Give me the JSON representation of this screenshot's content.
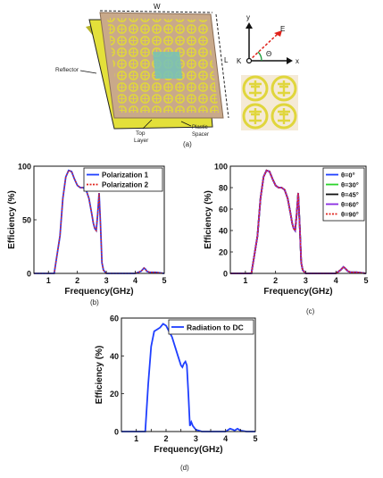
{
  "figure_a": {
    "caption": "(a)",
    "labels": {
      "width": "W",
      "length": "L",
      "reflector": "Reflector",
      "top_layer_1": "Top",
      "top_layer_2": "Layer",
      "plastic_spacer_1": "Plastic",
      "plastic_spacer_2": "Spacer",
      "axis_e": "E",
      "axis_k": "K",
      "axis_x": "x",
      "axis_y": "y",
      "angle": "Θ"
    },
    "colors": {
      "reflector": "#e3e03a",
      "reflector_side": "#b8b42a",
      "substrate": "#c9a98a",
      "cell": "#e0d63c",
      "center_cell": "#74c2b8",
      "e_vector": "#e0231c",
      "arc": "#1a9a3a"
    }
  },
  "chart_data": [
    {
      "id": "b",
      "type": "line",
      "caption": "(b)",
      "xlabel": "Frequency(GHz)",
      "ylabel": "Efficiency (%)",
      "xlim": [
        0.5,
        5
      ],
      "ylim": [
        0,
        100
      ],
      "xticks": [
        1,
        2,
        3,
        4,
        5
      ],
      "yticks": [
        0,
        50,
        100
      ],
      "grid": false,
      "legend_position": "top-right",
      "x": [
        0.5,
        0.9,
        1.2,
        1.4,
        1.5,
        1.6,
        1.7,
        1.8,
        1.9,
        2.0,
        2.1,
        2.2,
        2.3,
        2.4,
        2.5,
        2.55,
        2.6,
        2.65,
        2.7,
        2.75,
        2.8,
        2.85,
        2.9,
        3.0,
        3.2,
        3.5,
        4.0,
        4.2,
        4.3,
        4.35,
        4.4,
        4.5,
        4.7,
        5.0
      ],
      "series": [
        {
          "name": "Polarization 1",
          "color": "#1f3fff",
          "dash": "solid",
          "values": [
            0,
            0,
            0,
            35,
            70,
            90,
            96,
            95,
            88,
            82,
            80,
            80,
            78,
            70,
            55,
            47,
            42,
            40,
            55,
            75,
            45,
            10,
            3,
            0,
            0,
            0,
            0,
            2,
            5,
            4,
            2,
            1,
            1,
            0
          ]
        },
        {
          "name": "Polarization 2",
          "color": "#e0231c",
          "dash": "dashed",
          "values": [
            0,
            0,
            0,
            35,
            70,
            90,
            96,
            95,
            88,
            82,
            80,
            80,
            78,
            70,
            55,
            47,
            42,
            40,
            55,
            75,
            45,
            10,
            3,
            0,
            0,
            0,
            0,
            2,
            5,
            4,
            2,
            1,
            1,
            0
          ]
        }
      ]
    },
    {
      "id": "c",
      "type": "line",
      "caption": "(c)",
      "xlabel": "Frequency(GHz)",
      "ylabel": "Efficiency (%)",
      "xlim": [
        0.5,
        5
      ],
      "ylim": [
        0,
        100
      ],
      "xticks": [
        1,
        2,
        3,
        4,
        5
      ],
      "yticks": [
        0,
        20,
        40,
        60,
        80,
        100
      ],
      "grid": false,
      "legend_position": "top-right",
      "x": [
        0.5,
        0.9,
        1.2,
        1.4,
        1.5,
        1.6,
        1.7,
        1.8,
        1.9,
        2.0,
        2.1,
        2.2,
        2.3,
        2.4,
        2.5,
        2.55,
        2.6,
        2.65,
        2.7,
        2.75,
        2.8,
        2.85,
        2.9,
        3.0,
        3.2,
        3.5,
        4.0,
        4.15,
        4.25,
        4.3,
        4.4,
        4.5,
        4.7,
        5.0
      ],
      "series": [
        {
          "name": "θ=0°",
          "color": "#1f3fff",
          "dash": "solid",
          "values": [
            0,
            0,
            0,
            35,
            70,
            90,
            96,
            95,
            88,
            82,
            80,
            80,
            78,
            70,
            55,
            47,
            42,
            40,
            55,
            75,
            45,
            10,
            3,
            0,
            0,
            0,
            0,
            3,
            6,
            5,
            2,
            1,
            1,
            0
          ]
        },
        {
          "name": "θ=30°",
          "color": "#2bd42b",
          "dash": "solid",
          "values": [
            0,
            0,
            0,
            35,
            70,
            90,
            96,
            95,
            88,
            82,
            80,
            80,
            78,
            70,
            55,
            47,
            42,
            40,
            55,
            75,
            45,
            10,
            3,
            0,
            0,
            0,
            0,
            3,
            6,
            5,
            2,
            1,
            1,
            0
          ]
        },
        {
          "name": "θ=45°",
          "color": "#111111",
          "dash": "solid",
          "values": [
            0,
            0,
            0,
            35,
            70,
            90,
            96,
            95,
            88,
            82,
            80,
            80,
            78,
            70,
            55,
            47,
            42,
            40,
            55,
            75,
            45,
            10,
            3,
            0,
            0,
            0,
            0,
            3,
            6,
            5,
            2,
            1,
            1,
            0
          ]
        },
        {
          "name": "θ=60°",
          "color": "#8a2be2",
          "dash": "solid",
          "values": [
            0,
            0,
            0,
            35,
            70,
            90,
            96,
            95,
            88,
            82,
            80,
            80,
            78,
            70,
            55,
            47,
            42,
            40,
            55,
            75,
            45,
            10,
            3,
            0,
            0,
            0,
            0,
            3,
            6,
            5,
            2,
            1,
            1,
            0
          ]
        },
        {
          "name": "θ=90°",
          "color": "#e0231c",
          "dash": "dashed",
          "values": [
            0,
            0,
            0,
            35,
            70,
            90,
            96,
            95,
            88,
            82,
            80,
            80,
            78,
            70,
            55,
            47,
            42,
            40,
            55,
            75,
            45,
            10,
            3,
            0,
            0,
            0,
            0,
            3,
            6,
            5,
            2,
            1,
            1,
            0
          ]
        }
      ]
    },
    {
      "id": "d",
      "type": "line",
      "caption": "(d)",
      "xlabel": "Frequency(GHz)",
      "ylabel": "Efficiency (%)",
      "xlim": [
        0.5,
        5
      ],
      "ylim": [
        0,
        60
      ],
      "xticks": [
        1,
        1.5,
        2,
        2.5,
        3,
        3.5,
        4,
        4.5,
        5
      ],
      "xtick_labels": [
        "1",
        "",
        "2",
        "",
        "3",
        "",
        "4",
        "",
        "5"
      ],
      "yticks": [
        0,
        20,
        40,
        60
      ],
      "grid": false,
      "legend_position": "top-right",
      "x": [
        0.5,
        1.0,
        1.3,
        1.4,
        1.5,
        1.6,
        1.7,
        1.8,
        1.9,
        2.0,
        2.1,
        2.2,
        2.3,
        2.4,
        2.5,
        2.55,
        2.6,
        2.65,
        2.7,
        2.75,
        2.8,
        2.85,
        2.9,
        3.0,
        3.2,
        3.5,
        4.0,
        4.15,
        4.25,
        4.3,
        4.4,
        4.5,
        4.7,
        5.0
      ],
      "series": [
        {
          "name": "Radiation to DC",
          "color": "#1f3fff",
          "dash": "solid",
          "values": [
            0,
            0,
            0,
            25,
            45,
            53,
            54,
            55,
            57,
            56,
            53,
            50,
            45,
            40,
            35,
            34,
            36,
            37,
            35,
            20,
            3,
            5,
            3,
            1,
            0,
            0,
            0,
            1.5,
            1,
            0.5,
            1.5,
            0.5,
            0,
            0
          ]
        }
      ]
    }
  ]
}
